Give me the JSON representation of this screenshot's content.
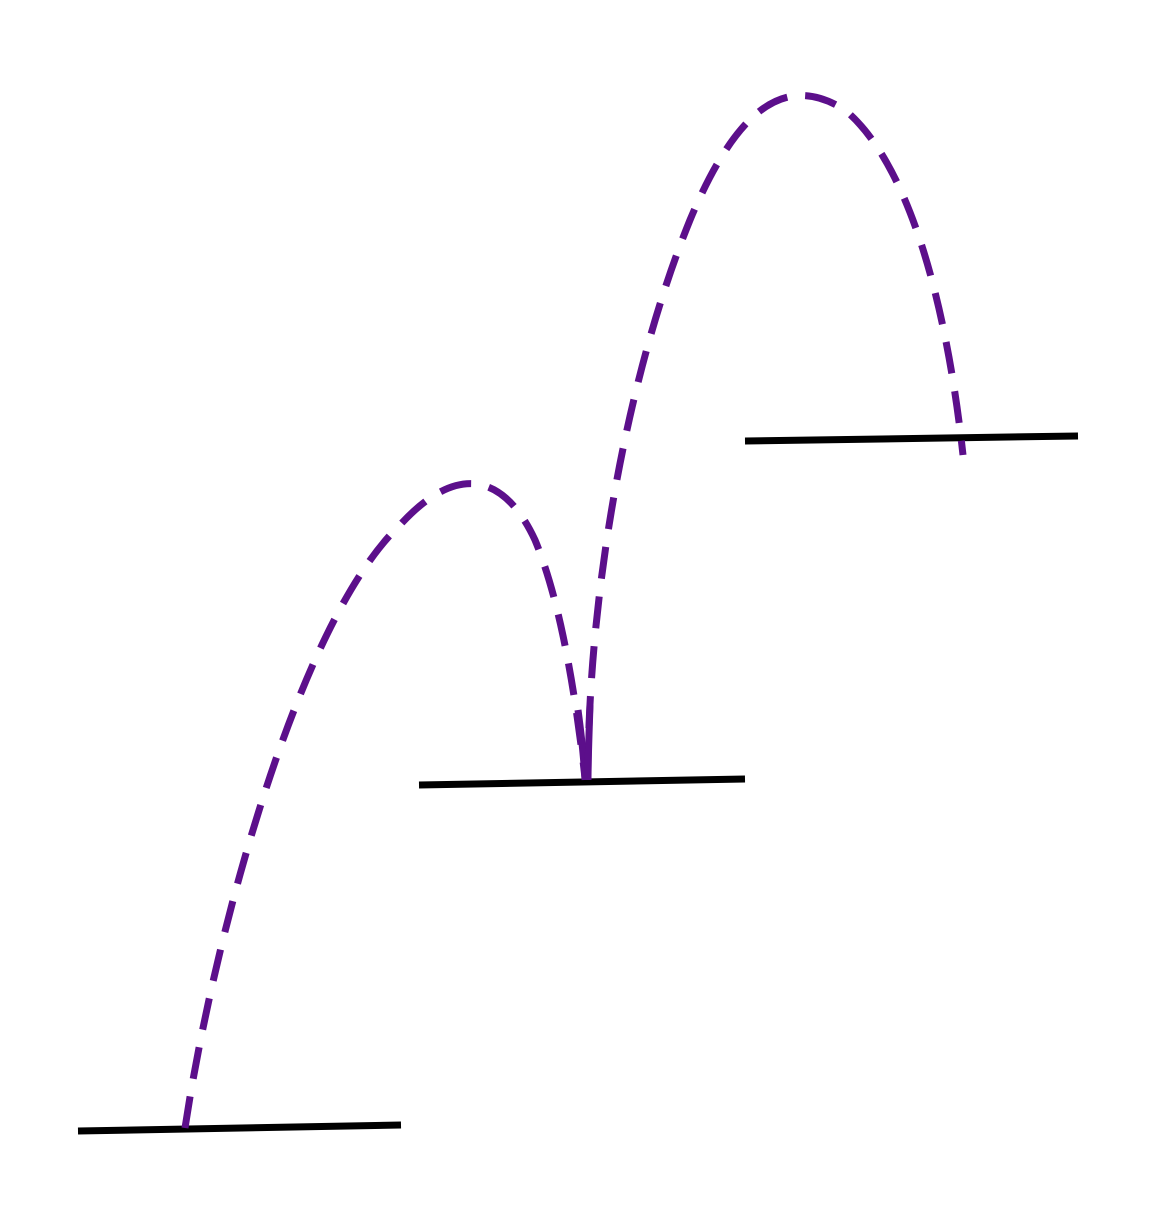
{
  "diagram": {
    "colors": {
      "platform": "#000000",
      "trajectory": "#5c0f8b",
      "background": "#ffffff"
    },
    "platforms": [
      {
        "name": "platform-lower"
      },
      {
        "name": "platform-middle"
      },
      {
        "name": "platform-upper"
      }
    ],
    "trajectories": [
      {
        "name": "trajectory-first-jump",
        "style": "dashed"
      },
      {
        "name": "trajectory-second-jump",
        "style": "dashed"
      }
    ]
  }
}
